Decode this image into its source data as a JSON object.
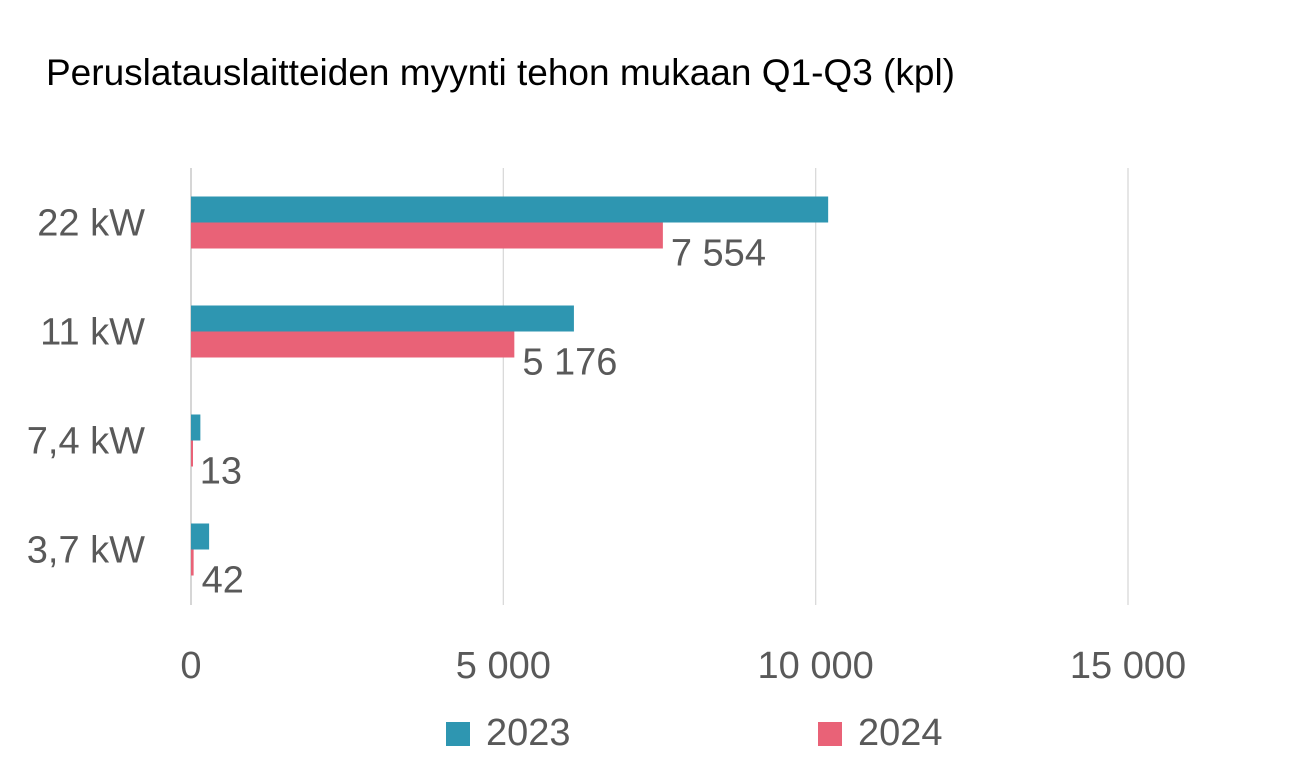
{
  "chart_data": {
    "type": "bar",
    "orientation": "horizontal",
    "title": "Peruslatauslaitteiden myynti tehon mukaan Q1-Q3 (kpl)",
    "categories": [
      "22 kW",
      "11 kW",
      "7,4 kW",
      "3,7 kW"
    ],
    "series": [
      {
        "name": "2023",
        "color": "#2E96B1",
        "values": [
          10200,
          6130,
          150,
          290
        ],
        "labels": [
          null,
          null,
          null,
          null
        ]
      },
      {
        "name": "2024",
        "color": "#E96277",
        "values": [
          7554,
          5176,
          13,
          42
        ],
        "labels": [
          "7 554",
          "5 176",
          "13",
          "42"
        ]
      }
    ],
    "xlim": [
      0,
      16000
    ],
    "xticks": [
      0,
      5000,
      10000,
      15000
    ],
    "xtick_labels": [
      "0",
      "5 000",
      "10 000",
      "15 000"
    ],
    "xlabel": "",
    "ylabel": "",
    "grid": true,
    "legend_position": "bottom"
  }
}
